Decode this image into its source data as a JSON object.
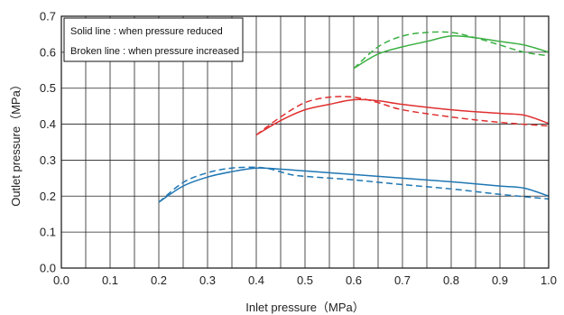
{
  "chart_data": {
    "type": "line",
    "title": "",
    "xlabel": "Inlet pressure（MPa）",
    "ylabel": "Outlet pressure（MPa）",
    "xlim": [
      0.0,
      1.0
    ],
    "ylim": [
      0.0,
      0.7
    ],
    "x_ticks": [
      "0.0",
      "0.1",
      "0.2",
      "0.3",
      "0.4",
      "0.5",
      "0.6",
      "0.7",
      "0.8",
      "0.9",
      "1.0"
    ],
    "y_ticks": [
      "0.0",
      "0.1",
      "0.2",
      "0.3",
      "0.4",
      "0.5",
      "0.6",
      "0.7"
    ],
    "grid": true,
    "legend_position": "top-left",
    "legend": [
      "Solid line : when pressure reduced",
      "Broken line : when pressure increased"
    ],
    "series": [
      {
        "color": "#1f77b4",
        "style": "solid",
        "points": [
          [
            0.2,
            0.183
          ],
          [
            0.25,
            0.228
          ],
          [
            0.3,
            0.253
          ],
          [
            0.35,
            0.268
          ],
          [
            0.4,
            0.278
          ],
          [
            0.45,
            0.275
          ],
          [
            0.5,
            0.27
          ],
          [
            0.6,
            0.26
          ],
          [
            0.7,
            0.25
          ],
          [
            0.8,
            0.24
          ],
          [
            0.9,
            0.228
          ],
          [
            0.95,
            0.222
          ],
          [
            1.0,
            0.2
          ]
        ]
      },
      {
        "color": "#1f77b4",
        "style": "dashed",
        "points": [
          [
            0.2,
            0.183
          ],
          [
            0.25,
            0.238
          ],
          [
            0.3,
            0.265
          ],
          [
            0.35,
            0.278
          ],
          [
            0.4,
            0.28
          ],
          [
            0.43,
            0.275
          ],
          [
            0.47,
            0.26
          ],
          [
            0.5,
            0.255
          ],
          [
            0.6,
            0.245
          ],
          [
            0.7,
            0.232
          ],
          [
            0.8,
            0.22
          ],
          [
            0.9,
            0.205
          ],
          [
            1.0,
            0.192
          ]
        ]
      },
      {
        "color": "#e03030",
        "style": "solid",
        "points": [
          [
            0.4,
            0.37
          ],
          [
            0.45,
            0.41
          ],
          [
            0.5,
            0.44
          ],
          [
            0.55,
            0.455
          ],
          [
            0.6,
            0.468
          ],
          [
            0.65,
            0.465
          ],
          [
            0.7,
            0.455
          ],
          [
            0.8,
            0.44
          ],
          [
            0.9,
            0.43
          ],
          [
            0.95,
            0.425
          ],
          [
            1.0,
            0.402
          ]
        ]
      },
      {
        "color": "#e03030",
        "style": "dashed",
        "points": [
          [
            0.4,
            0.37
          ],
          [
            0.45,
            0.42
          ],
          [
            0.5,
            0.46
          ],
          [
            0.55,
            0.475
          ],
          [
            0.6,
            0.475
          ],
          [
            0.65,
            0.46
          ],
          [
            0.7,
            0.44
          ],
          [
            0.8,
            0.42
          ],
          [
            0.9,
            0.405
          ],
          [
            1.0,
            0.395
          ]
        ]
      },
      {
        "color": "#3cb044",
        "style": "solid",
        "points": [
          [
            0.6,
            0.555
          ],
          [
            0.65,
            0.595
          ],
          [
            0.7,
            0.615
          ],
          [
            0.75,
            0.63
          ],
          [
            0.8,
            0.645
          ],
          [
            0.85,
            0.64
          ],
          [
            0.9,
            0.63
          ],
          [
            0.95,
            0.62
          ],
          [
            1.0,
            0.6
          ]
        ]
      },
      {
        "color": "#3cb044",
        "style": "dashed",
        "points": [
          [
            0.6,
            0.555
          ],
          [
            0.65,
            0.615
          ],
          [
            0.7,
            0.645
          ],
          [
            0.75,
            0.655
          ],
          [
            0.8,
            0.655
          ],
          [
            0.85,
            0.64
          ],
          [
            0.9,
            0.62
          ],
          [
            0.95,
            0.6
          ],
          [
            1.0,
            0.59
          ]
        ]
      }
    ]
  }
}
